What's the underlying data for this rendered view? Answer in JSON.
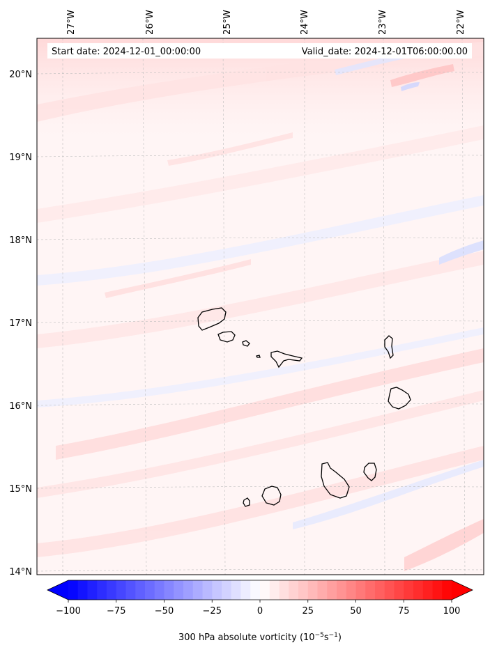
{
  "map": {
    "start_date": "Start date: 2024-12-01_00:00:00",
    "valid_date": "Valid_date: 2024-12-01T06:00:00.00",
    "longitude_labels": [
      "27°W",
      "26°W",
      "25°W",
      "24°W",
      "23°W",
      "22°W"
    ],
    "latitude_labels": [
      "20°N",
      "19°N",
      "18°N",
      "17°N",
      "16°N",
      "15°N",
      "14°N"
    ],
    "gridlines": true,
    "field": "300 hPa absolute vorticity",
    "islands": [
      "Santo Antão",
      "São Vicente",
      "Santa Luzia",
      "São Nicolau",
      "Sal",
      "Boa Vista",
      "Maio",
      "Santiago",
      "Fogo",
      "Brava"
    ]
  },
  "colorbar": {
    "ticks": [
      "−100",
      "−75",
      "−50",
      "−25",
      "0",
      "25",
      "50",
      "75",
      "100"
    ],
    "range": [
      -100,
      100
    ],
    "label_prefix": "300 hPa absolute vorticity (10",
    "label_exp1": "−5",
    "label_mid": "s",
    "label_exp2": "−1",
    "label_suffix": ")",
    "colors": {
      "min": "#0000ff",
      "center": "#ffffff",
      "max": "#ff0000"
    },
    "extend": "both"
  }
}
